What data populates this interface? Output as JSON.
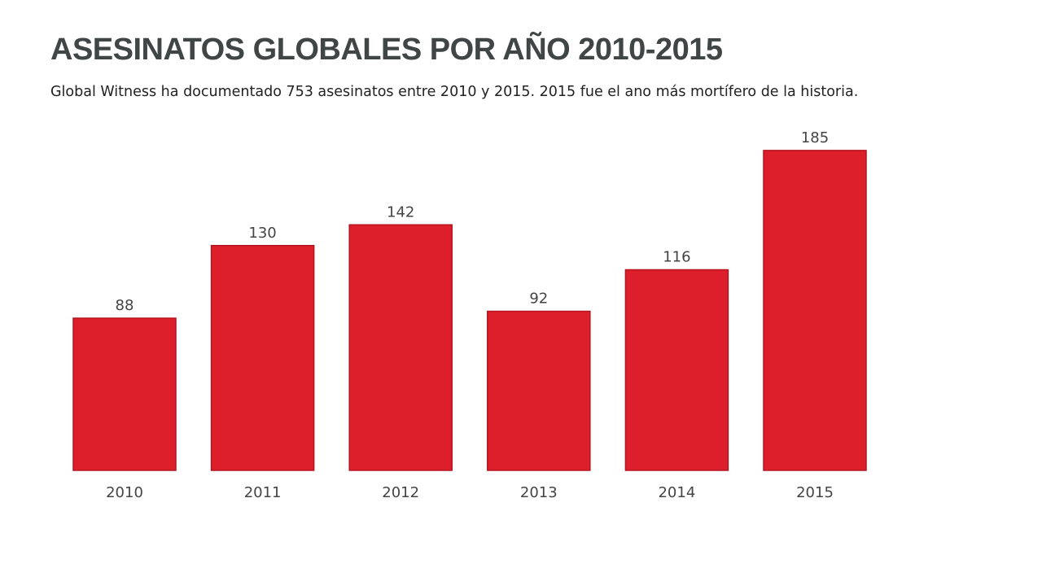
{
  "chart_data": {
    "type": "bar",
    "title": "ASESINATOS GLOBALES POR AÑO 2010-2015",
    "subtitle": "Global Witness ha documentado 753 asesinatos entre 2010 y 2015. 2015 fue el ano más mortífero de la historia.",
    "categories": [
      "2010",
      "2011",
      "2012",
      "2013",
      "2014",
      "2015"
    ],
    "values": [
      88,
      130,
      142,
      92,
      116,
      185
    ],
    "color": "#dc1f2b"
  }
}
